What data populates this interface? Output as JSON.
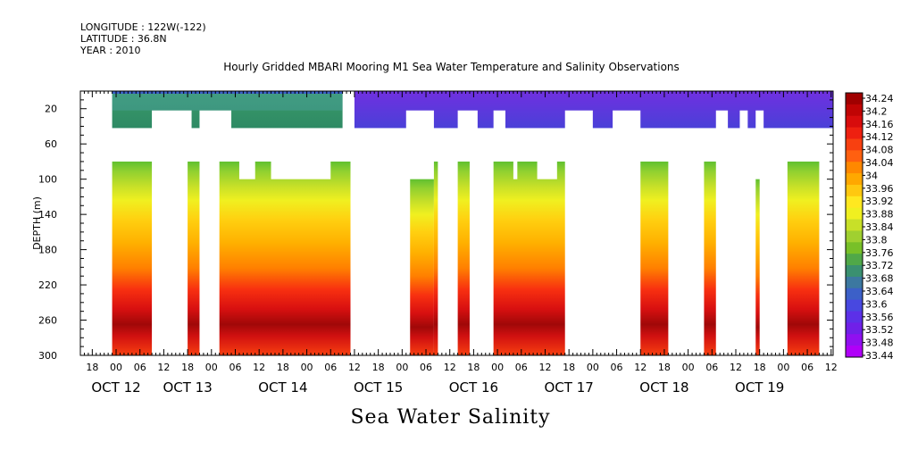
{
  "meta": {
    "longitude": "LONGITUDE : 122W(-122)",
    "latitude": "LATITUDE : 36.8N",
    "year": "YEAR : 2010"
  },
  "chart_data": {
    "type": "heatmap",
    "title": "Hourly Gridded MBARI Mooring M1 Sea Water Temperature and Salinity Observations",
    "xlabel": "",
    "ylabel": "DEPTH (m)",
    "bottom_label": "Sea Water Salinity",
    "ylim": [
      300,
      0
    ],
    "y_ticks": [
      20,
      60,
      100,
      140,
      180,
      220,
      260,
      300
    ],
    "x_hour_ticks": [
      "18",
      "00",
      "06",
      "12",
      "18",
      "00",
      "06",
      "12",
      "18",
      "00",
      "06",
      "12",
      "18",
      "00",
      "06",
      "12",
      "18",
      "00",
      "06",
      "12",
      "18",
      "00",
      "06",
      "12",
      "18",
      "00",
      "06",
      "12",
      "18",
      "00",
      "06",
      "12"
    ],
    "x_day_labels": [
      "OCT 12",
      "OCT 13",
      "OCT 14",
      "OCT 15",
      "OCT 16",
      "OCT 17",
      "OCT 18",
      "OCT 19"
    ],
    "colorbar_labels": [
      "34.24",
      "34.2",
      "34.16",
      "34.12",
      "34.08",
      "34.04",
      "34",
      "33.96",
      "33.92",
      "33.88",
      "33.84",
      "33.8",
      "33.76",
      "33.72",
      "33.68",
      "33.64",
      "33.6",
      "33.56",
      "33.52",
      "33.48",
      "33.44"
    ],
    "value_range": [
      33.44,
      34.24
    ],
    "surface_values_approx": {
      "before_oct15": 33.66,
      "after_oct15": 33.52
    },
    "deep_values_approx": {
      "at_100m": 33.88,
      "at_180m": 34.04,
      "at_260m": 34.22,
      "at_300m": 34.12
    }
  }
}
